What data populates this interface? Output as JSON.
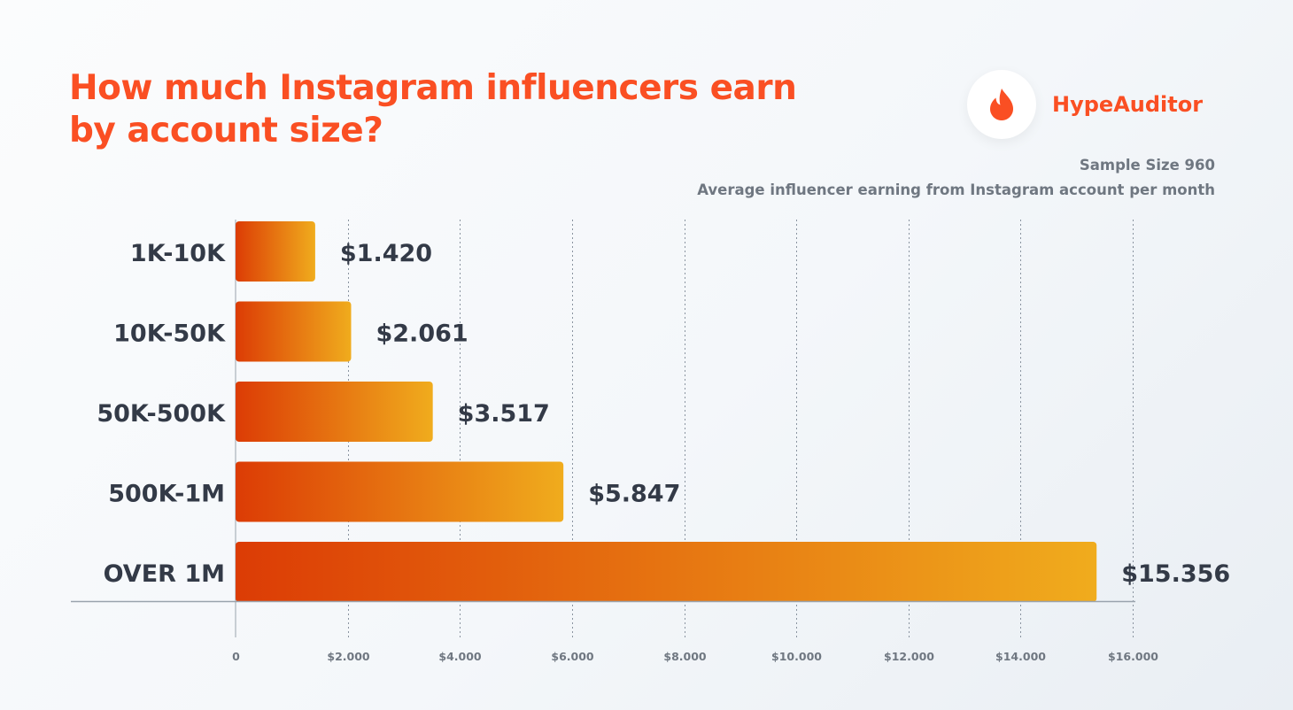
{
  "header": {
    "title_line1": "How much Instagram influencers earn",
    "title_line2": "by account size?",
    "brand": "HypeAuditor",
    "brand_icon": "flame-icon",
    "sample_size": "Sample Size 960",
    "subtitle": "Average influencer earning from Instagram account per month"
  },
  "colors": {
    "accent": "#fa4f23",
    "bar_start": "#dc3c05",
    "bar_end": "#f0ac1d",
    "text_dark": "#333a47",
    "text_muted": "#6f7781",
    "grid": "#8a94a0"
  },
  "chart_data": {
    "type": "bar",
    "orientation": "horizontal",
    "categories": [
      "1K-10K",
      "10K-50K",
      "50K-500K",
      "500K-1M",
      "OVER 1M"
    ],
    "values": [
      1420,
      2061,
      3517,
      5847,
      15356
    ],
    "value_labels": [
      "$1.420",
      "$2.061",
      "$3.517",
      "$5.847",
      "$15.356"
    ],
    "x_ticks": [
      0,
      2000,
      4000,
      6000,
      8000,
      10000,
      12000,
      14000,
      16000
    ],
    "x_tick_labels": [
      "0",
      "$2.000",
      "$4.000",
      "$6.000",
      "$8.000",
      "$10.000",
      "$12.000",
      "$14.000",
      "$16.000"
    ],
    "xlim": [
      0,
      16000
    ],
    "grid": "vertical dashed",
    "legend": "none"
  }
}
